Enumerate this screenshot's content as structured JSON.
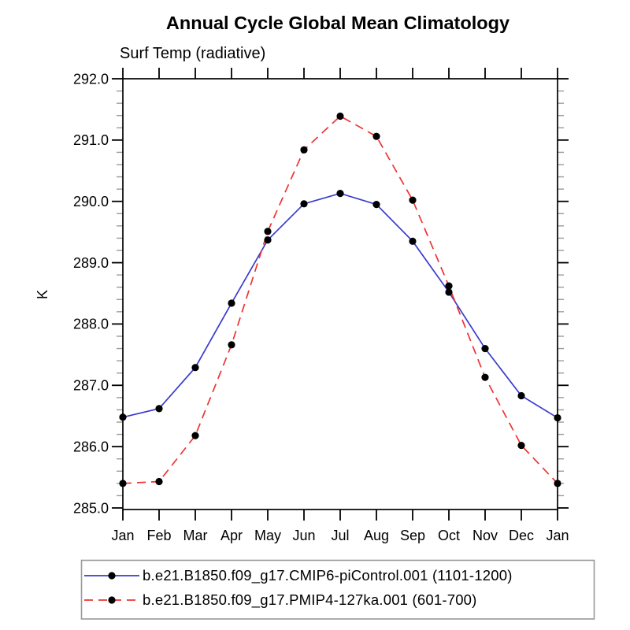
{
  "chart_data": {
    "type": "line",
    "title": "Annual Cycle Global Mean Climatology",
    "subtitle": "Surf Temp (radiative)",
    "ylabel": "K",
    "categories": [
      "Jan",
      "Feb",
      "Mar",
      "Apr",
      "May",
      "Jun",
      "Jul",
      "Aug",
      "Sep",
      "Oct",
      "Nov",
      "Dec",
      "Jan"
    ],
    "ylim": [
      285.0,
      292.0
    ],
    "ytick_labels": [
      "285.0",
      "286.0",
      "287.0",
      "288.0",
      "289.0",
      "290.0",
      "291.0",
      "292.0"
    ],
    "y_minor_step": 0.2,
    "grid": false,
    "legend_position": "bottom",
    "marker_color": "#000000",
    "legend_border_color": "#9a9a9a",
    "series": [
      {
        "name": "b.e21.B1850.f09_g17.CMIP6-piControl.001 (1101-1200)",
        "color": "#3a3ace",
        "line_style": "solid",
        "marker": "filled-circle",
        "values": [
          286.48,
          286.62,
          287.29,
          288.34,
          289.37,
          289.96,
          290.13,
          289.95,
          289.35,
          288.52,
          287.6,
          286.83,
          286.47
        ]
      },
      {
        "name": "b.e21.B1850.f09_g17.PMIP4-127ka.001 (601-700)",
        "color": "#ee3333",
        "line_style": "dashed",
        "marker": "filled-circle",
        "values": [
          285.4,
          285.43,
          286.18,
          287.66,
          289.51,
          290.84,
          291.39,
          291.06,
          290.02,
          288.62,
          287.13,
          286.02,
          285.4
        ]
      }
    ]
  }
}
